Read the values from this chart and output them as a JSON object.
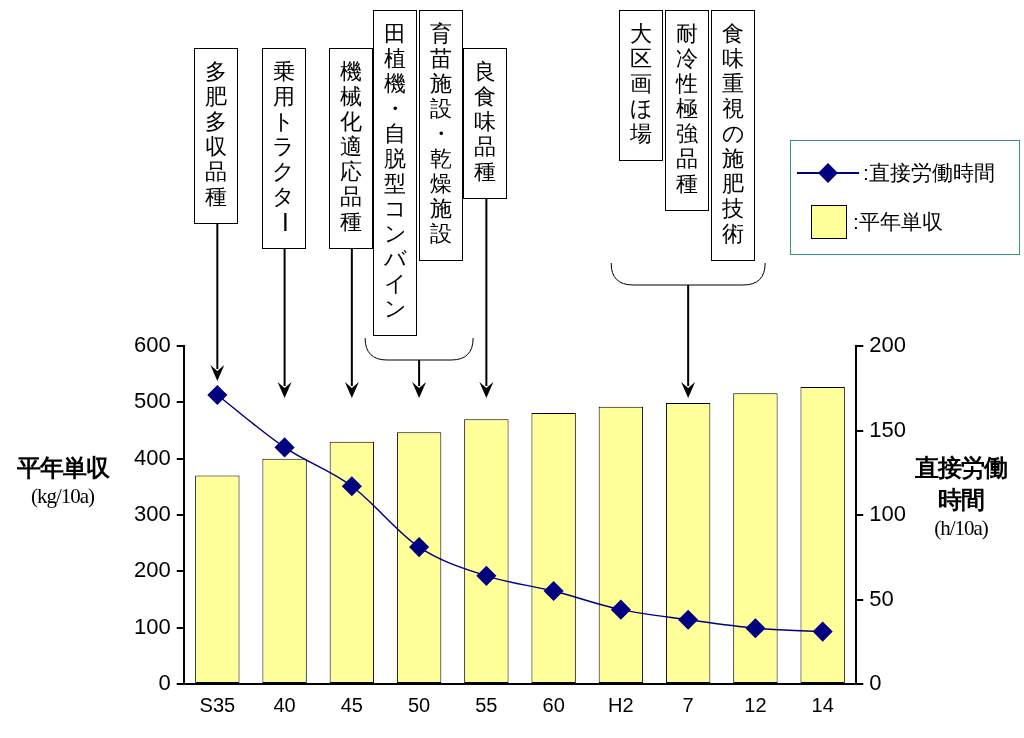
{
  "chart_data": {
    "type": "bar",
    "categories": [
      "S35",
      "40",
      "45",
      "50",
      "55",
      "60",
      "H2",
      "7",
      "12",
      "14"
    ],
    "series": [
      {
        "name": ":直接労働時間",
        "type": "line",
        "axis": "y2",
        "color": "#000080",
        "marker": "diamond",
        "values": [
          171,
          140,
          117,
          81,
          64,
          55,
          44,
          38,
          33,
          31
        ]
      },
      {
        "name": ":平年単収",
        "color": "#ffff99",
        "values": [
          370,
          400,
          430,
          447,
          470,
          481,
          492,
          499,
          516,
          527
        ]
      }
    ],
    "ylabel": "平年単収\n(kg/10a)",
    "y2label": "直接労働時間\n(h/10a)",
    "ylim": [
      0,
      600
    ],
    "yticks": [
      0,
      100,
      200,
      300,
      400,
      500,
      600
    ],
    "y2lim": [
      0,
      200
    ],
    "y2ticks": [
      0,
      50,
      100,
      150,
      200
    ],
    "grid": false,
    "legend": "top right",
    "annotations": [
      "多肥多収品種",
      "乗用トラクター",
      "機械化適応品種",
      "田植機・自脱型コンバイン",
      "育苗施設・乾燥施設",
      "良食味品種",
      "大区画ほ場",
      "耐冷性極強品種",
      "食味重視の施肥技術"
    ]
  }
}
